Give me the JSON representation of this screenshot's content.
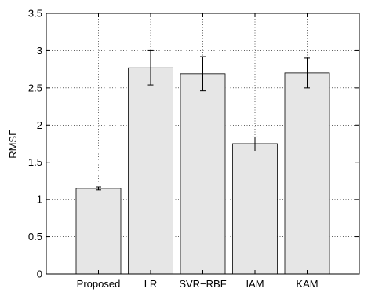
{
  "chart_data": {
    "type": "bar",
    "categories": [
      "Proposed",
      "LR",
      "SVR−RBF",
      "IAM",
      "KAM"
    ],
    "values": [
      1.15,
      2.77,
      2.69,
      1.75,
      2.7
    ],
    "error_low": [
      1.13,
      2.54,
      2.46,
      1.65,
      2.5
    ],
    "error_high": [
      1.17,
      3.0,
      2.92,
      1.84,
      2.9
    ],
    "ylabel": "RMSE",
    "xlabel": "",
    "title": "",
    "ylim": [
      0,
      3.5
    ],
    "yticks": [
      "0",
      "0.5",
      "1",
      "1.5",
      "2",
      "2.5",
      "3",
      "3.5"
    ],
    "grid": true,
    "bar_color": "#e6e6e6",
    "bar_edge_color": "#000000"
  }
}
